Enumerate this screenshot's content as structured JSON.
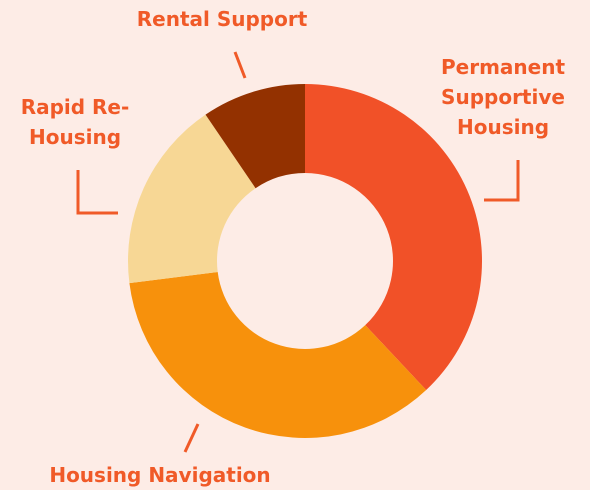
{
  "chart_data": {
    "type": "donut",
    "categories": [
      "Permanent Supportive Housing",
      "Housing Navigation",
      "Rapid Re-Housing",
      "Rental Support"
    ],
    "values": [
      38,
      35,
      17.5,
      9.5
    ],
    "colors": [
      "#f15128",
      "#f7910c",
      "#f7d795",
      "#933100"
    ]
  }
}
